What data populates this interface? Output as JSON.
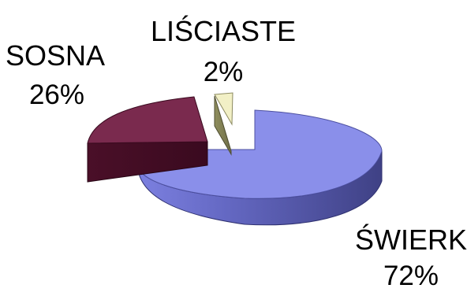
{
  "chart_data": {
    "type": "pie",
    "style": "3d-exploded",
    "title": "",
    "legend": "none",
    "slices": [
      {
        "name": "ŚWIERK",
        "label": "ŚWIERK",
        "value": 72,
        "value_label": "72%",
        "color": "#8A8FEA"
      },
      {
        "name": "SOSNA",
        "label": "SOSNA",
        "value": 26,
        "value_label": "26%",
        "color": "#7A2A4E"
      },
      {
        "name": "LIŚCIASTE",
        "label": "LIŚCIASTE",
        "value": 2,
        "value_label": "2%",
        "color": "#F2F0C6"
      }
    ]
  }
}
